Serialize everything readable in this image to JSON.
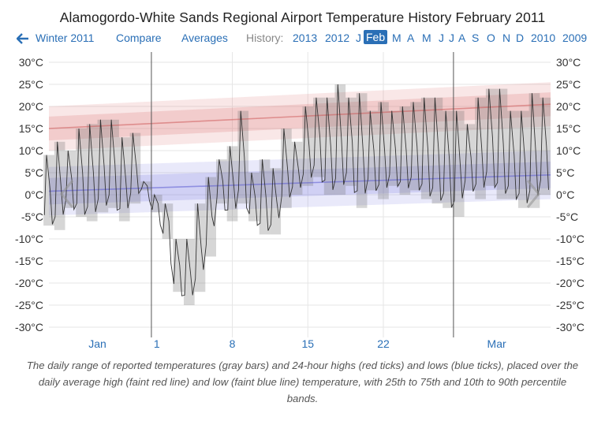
{
  "page": {
    "title": "Alamogordo-White Sands Regional Airport Temperature History February 2011",
    "caption": "The daily range of reported temperatures (gray bars) and 24-hour highs (red ticks) and lows (blue ticks), placed over the daily average high (faint red line) and low (faint blue line) temperature, with 25th to 75th and 10th to 90th percentile bands."
  },
  "nav": {
    "prev_label": "Winter 2011",
    "compare_label": "Compare",
    "averages_label": "Averages",
    "history_label": "History:",
    "years_before": [
      "2013",
      "2012"
    ],
    "months": [
      "J",
      "Feb",
      "M",
      "A",
      "M",
      "J",
      "J",
      "A",
      "S",
      "O",
      "N",
      "D"
    ],
    "active_month": "Feb",
    "years_after": [
      "2010",
      "2009"
    ],
    "icons": {
      "prev": "arrow-left-icon",
      "chart_prev": "chevron-left-icon",
      "chart_next": "chevron-right-icon"
    }
  },
  "chart_data": {
    "type": "area",
    "title": "Alamogordo-White Sands Regional Airport Temperature History February 2011",
    "ylim": [
      -32,
      31
    ],
    "yticks": [
      30,
      25,
      20,
      15,
      10,
      5,
      0,
      -5,
      -10,
      -15,
      -20,
      -25,
      -30
    ],
    "ytick_labels": [
      "30°C",
      "25°C",
      "20°C",
      "15°C",
      "10°C",
      "5°C",
      "0°C",
      "-5°C",
      "-10°C",
      "-15°C",
      "-20°C",
      "-25°C",
      "-30°C"
    ],
    "xlim": [
      -9,
      37.5
    ],
    "x_labels": [
      {
        "day": -4.5,
        "label": "Jan"
      },
      {
        "day": 1,
        "label": "1"
      },
      {
        "day": 8,
        "label": "8"
      },
      {
        "day": 15,
        "label": "15"
      },
      {
        "day": 22,
        "label": "22"
      },
      {
        "day": 32.5,
        "label": "Mar"
      }
    ],
    "gridline_days": [
      8,
      15,
      22
    ],
    "month_boundary_days": [
      0.5,
      28.5
    ],
    "average_high": {
      "start": 15.0,
      "end": 20.5
    },
    "average_low": {
      "start": 0.8,
      "end": 4.5
    },
    "high_band_25_75": 2.7,
    "high_band_10_90": 5.0,
    "low_band_25_75": 3.0,
    "low_band_10_90": 5.5,
    "days": [
      -9,
      -8,
      -7,
      -6,
      -5,
      -4,
      -3,
      -2,
      -1,
      0,
      1,
      2,
      3,
      4,
      5,
      6,
      7,
      8,
      9,
      10,
      11,
      12,
      13,
      14,
      15,
      16,
      17,
      18,
      19,
      20,
      21,
      22,
      23,
      24,
      25,
      26,
      27,
      28,
      29,
      30,
      31,
      32,
      33,
      34,
      35,
      36,
      37
    ],
    "daily_low": [
      -7,
      -8,
      -3,
      -5,
      -6,
      -4,
      -3,
      -6,
      -2,
      1,
      -4,
      -10,
      -22,
      -25,
      -22,
      -14,
      -2,
      -6,
      -2,
      -6,
      -9,
      -9,
      -3,
      0,
      2,
      4,
      0,
      0,
      2,
      -3,
      1,
      -1,
      2,
      0,
      1,
      -1,
      -2,
      -3,
      -5,
      1,
      -1,
      2,
      -1,
      -1,
      -3,
      -3,
      0
    ],
    "daily_high": [
      9,
      12,
      10,
      15,
      16,
      17,
      17,
      13,
      14,
      3,
      0,
      -2,
      -10,
      -10,
      -2,
      4,
      8,
      11,
      19,
      5,
      8,
      6,
      15,
      12,
      20,
      22,
      22,
      25,
      22,
      23,
      19,
      21,
      19,
      20,
      21,
      22,
      22,
      19,
      19,
      16,
      22,
      24,
      24,
      19,
      19,
      23,
      22
    ]
  }
}
